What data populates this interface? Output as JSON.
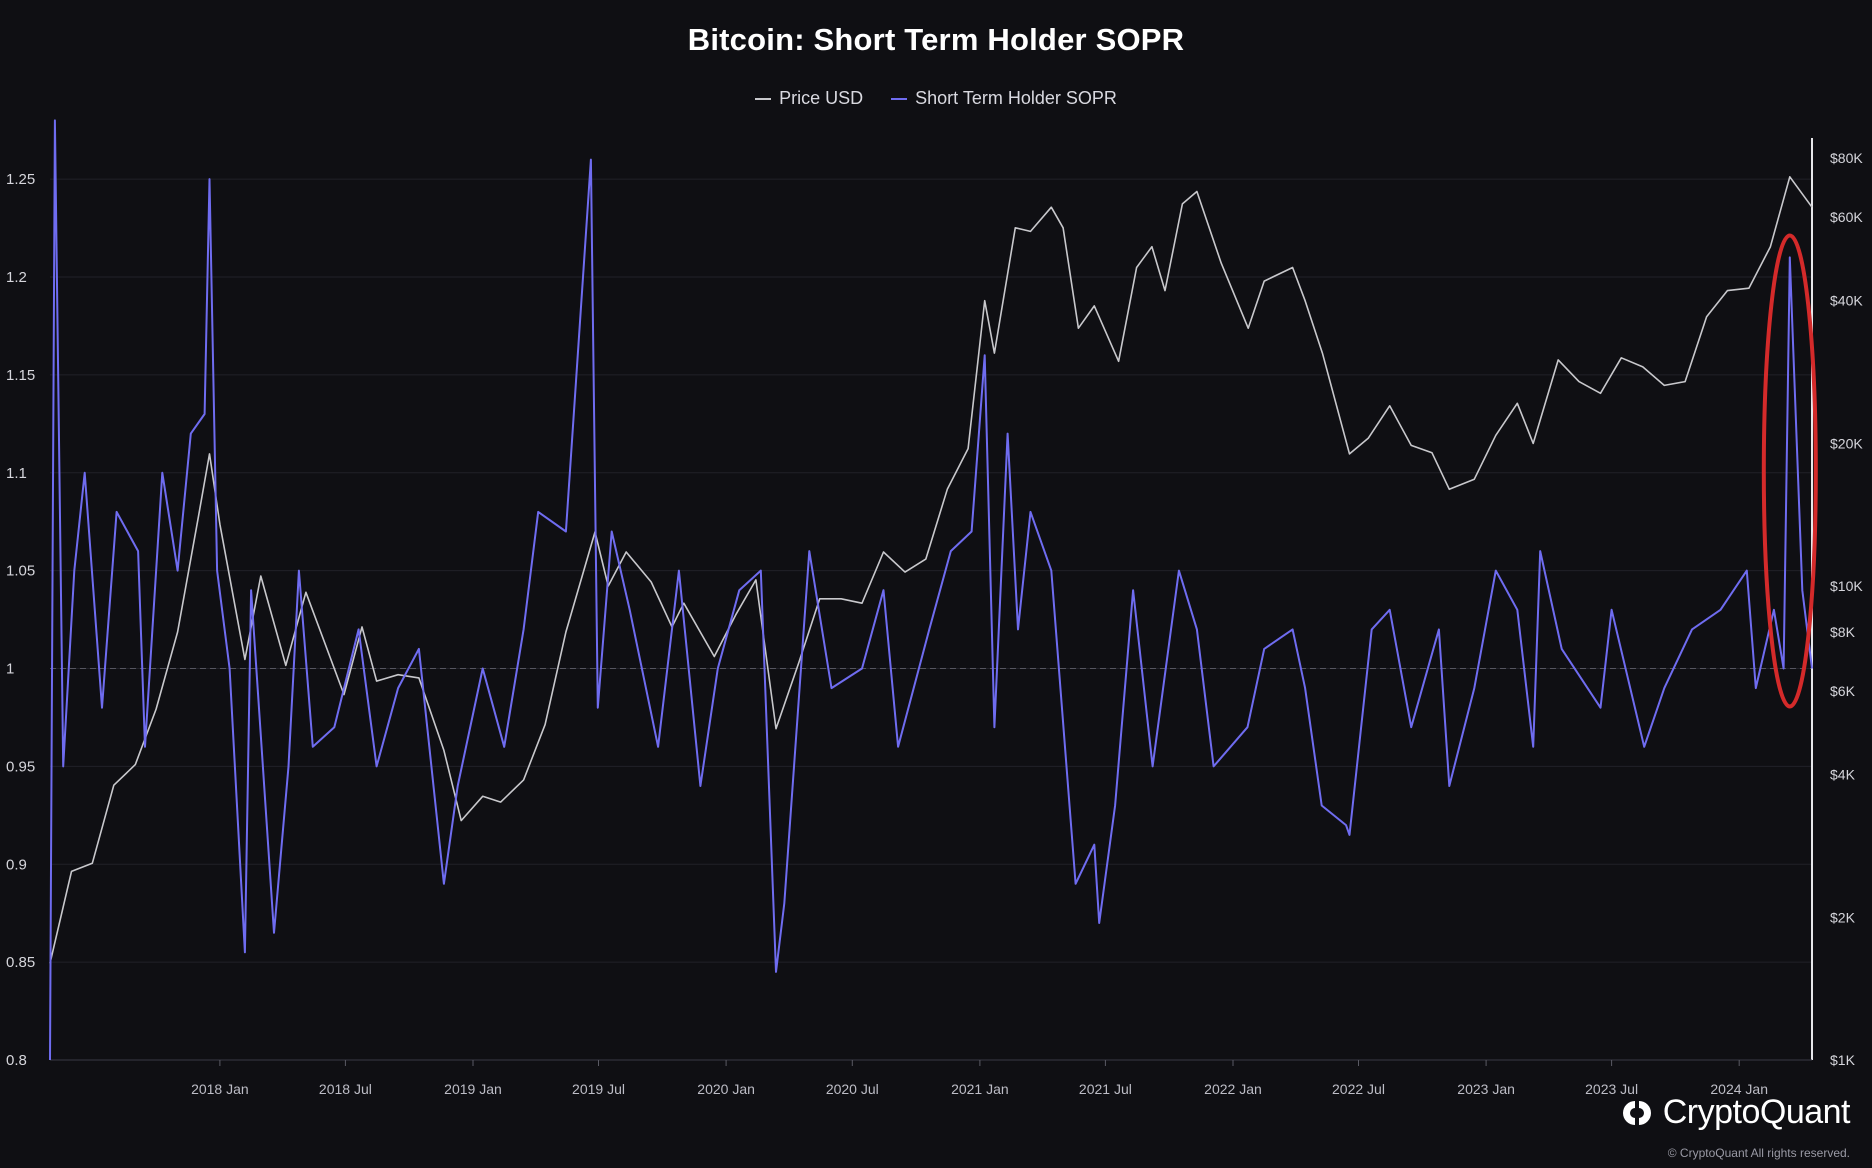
{
  "chart_data": {
    "type": "line",
    "title": "Bitcoin: Short Term Holder SOPR",
    "legend": [
      {
        "name": "Price USD",
        "color": "#c8c8cc"
      },
      {
        "name": "Short Term Holder SOPR",
        "color": "#6f6cf0"
      }
    ],
    "legend_position": "top-center",
    "x_ticks": [
      "2018 Jan",
      "2018 Jul",
      "2019 Jan",
      "2019 Jul",
      "2020 Jan",
      "2020 Jul",
      "2021 Jan",
      "2021 Jul",
      "2022 Jan",
      "2022 Jul",
      "2023 Jan",
      "2023 Jul",
      "2024 Jan"
    ],
    "x_range": [
      "2017-05-01",
      "2024-04-15"
    ],
    "left_axis": {
      "ticks": [
        "0.8",
        "0.85",
        "0.9",
        "0.95",
        "1",
        "1.05",
        "1.1",
        "1.15",
        "1.2",
        "1.25"
      ],
      "ylim": [
        0.8,
        1.27
      ]
    },
    "right_axis": {
      "scale": "log",
      "ticks": [
        "$1K",
        "$2K",
        "$4K",
        "$6K",
        "$8K",
        "$10K",
        "$20K",
        "$40K",
        "$60K",
        "$80K"
      ],
      "ylim": [
        1000,
        80000
      ]
    },
    "reference_line": 1,
    "highlight": {
      "type": "ellipse",
      "color": "#d42a2a",
      "around": "2024-03 SOPR spike"
    },
    "series": [
      {
        "name": "Price USD",
        "color": "#c8c8cc",
        "points": [
          [
            "2017-05-01",
            1600
          ],
          [
            "2017-06-01",
            2500
          ],
          [
            "2017-07-01",
            2600
          ],
          [
            "2017-08-01",
            3800
          ],
          [
            "2017-09-01",
            4200
          ],
          [
            "2017-10-01",
            5500
          ],
          [
            "2017-11-01",
            8000
          ],
          [
            "2017-12-01",
            14000
          ],
          [
            "2017-12-17",
            19000
          ],
          [
            "2018-01-01",
            13500
          ],
          [
            "2018-02-06",
            7000
          ],
          [
            "2018-03-01",
            10500
          ],
          [
            "2018-04-06",
            6800
          ],
          [
            "2018-05-05",
            9700
          ],
          [
            "2018-06-29",
            5900
          ],
          [
            "2018-07-25",
            8200
          ],
          [
            "2018-08-15",
            6300
          ],
          [
            "2018-09-15",
            6500
          ],
          [
            "2018-10-15",
            6400
          ],
          [
            "2018-11-20",
            4500
          ],
          [
            "2018-12-15",
            3200
          ],
          [
            "2019-01-15",
            3600
          ],
          [
            "2019-02-10",
            3500
          ],
          [
            "2019-03-15",
            3900
          ],
          [
            "2019-04-15",
            5100
          ],
          [
            "2019-05-15",
            8000
          ],
          [
            "2019-06-26",
            13000
          ],
          [
            "2019-07-15",
            10000
          ],
          [
            "2019-08-10",
            11800
          ],
          [
            "2019-09-15",
            10200
          ],
          [
            "2019-10-15",
            8200
          ],
          [
            "2019-11-01",
            9200
          ],
          [
            "2019-12-15",
            7100
          ],
          [
            "2020-01-15",
            8700
          ],
          [
            "2020-02-13",
            10300
          ],
          [
            "2020-03-13",
            5000
          ],
          [
            "2020-04-15",
            6900
          ],
          [
            "2020-05-15",
            9400
          ],
          [
            "2020-06-15",
            9400
          ],
          [
            "2020-07-15",
            9200
          ],
          [
            "2020-08-15",
            11800
          ],
          [
            "2020-09-15",
            10700
          ],
          [
            "2020-10-15",
            11400
          ],
          [
            "2020-11-15",
            16000
          ],
          [
            "2020-12-15",
            19500
          ],
          [
            "2021-01-08",
            40000
          ],
          [
            "2021-01-22",
            31000
          ],
          [
            "2021-02-21",
            57000
          ],
          [
            "2021-03-15",
            56000
          ],
          [
            "2021-04-14",
            63000
          ],
          [
            "2021-05-01",
            57000
          ],
          [
            "2021-05-23",
            35000
          ],
          [
            "2021-06-15",
            39000
          ],
          [
            "2021-07-20",
            29800
          ],
          [
            "2021-08-15",
            47000
          ],
          [
            "2021-09-06",
            52000
          ],
          [
            "2021-09-25",
            42000
          ],
          [
            "2021-10-20",
            64000
          ],
          [
            "2021-11-10",
            68000
          ],
          [
            "2021-12-15",
            48000
          ],
          [
            "2022-01-23",
            35000
          ],
          [
            "2022-02-15",
            44000
          ],
          [
            "2022-03-28",
            47000
          ],
          [
            "2022-04-15",
            40000
          ],
          [
            "2022-05-10",
            31000
          ],
          [
            "2022-06-18",
            19000
          ],
          [
            "2022-07-15",
            20500
          ],
          [
            "2022-08-15",
            24000
          ],
          [
            "2022-09-15",
            19800
          ],
          [
            "2022-10-15",
            19100
          ],
          [
            "2022-11-09",
            16000
          ],
          [
            "2022-12-15",
            16800
          ],
          [
            "2023-01-15",
            20800
          ],
          [
            "2023-02-15",
            24300
          ],
          [
            "2023-03-10",
            20000
          ],
          [
            "2023-04-15",
            30000
          ],
          [
            "2023-05-15",
            27000
          ],
          [
            "2023-06-15",
            25500
          ],
          [
            "2023-07-15",
            30300
          ],
          [
            "2023-08-15",
            29000
          ],
          [
            "2023-09-15",
            26500
          ],
          [
            "2023-10-15",
            27000
          ],
          [
            "2023-11-15",
            37000
          ],
          [
            "2023-12-15",
            42000
          ],
          [
            "2024-01-15",
            42500
          ],
          [
            "2024-02-15",
            52000
          ],
          [
            "2024-03-14",
            73000
          ],
          [
            "2024-04-15",
            63000
          ]
        ]
      },
      {
        "name": "Short Term Holder SOPR",
        "color": "#6f6cf0",
        "points": [
          [
            "2017-05-01",
            0.8
          ],
          [
            "2017-05-08",
            1.28
          ],
          [
            "2017-05-20",
            0.95
          ],
          [
            "2017-06-05",
            1.05
          ],
          [
            "2017-06-20",
            1.1
          ],
          [
            "2017-07-15",
            0.98
          ],
          [
            "2017-08-05",
            1.08
          ],
          [
            "2017-09-05",
            1.06
          ],
          [
            "2017-09-15",
            0.96
          ],
          [
            "2017-10-10",
            1.1
          ],
          [
            "2017-11-01",
            1.05
          ],
          [
            "2017-11-20",
            1.12
          ],
          [
            "2017-12-10",
            1.13
          ],
          [
            "2017-12-17",
            1.25
          ],
          [
            "2017-12-28",
            1.05
          ],
          [
            "2018-01-15",
            1.0
          ],
          [
            "2018-02-06",
            0.855
          ],
          [
            "2018-02-15",
            1.04
          ],
          [
            "2018-03-20",
            0.865
          ],
          [
            "2018-04-10",
            0.95
          ],
          [
            "2018-04-25",
            1.05
          ],
          [
            "2018-05-15",
            0.96
          ],
          [
            "2018-06-15",
            0.97
          ],
          [
            "2018-07-20",
            1.02
          ],
          [
            "2018-08-15",
            0.95
          ],
          [
            "2018-09-15",
            0.99
          ],
          [
            "2018-10-15",
            1.01
          ],
          [
            "2018-11-20",
            0.89
          ],
          [
            "2018-12-10",
            0.94
          ],
          [
            "2019-01-15",
            1.0
          ],
          [
            "2019-02-15",
            0.96
          ],
          [
            "2019-03-15",
            1.02
          ],
          [
            "2019-04-05",
            1.08
          ],
          [
            "2019-05-15",
            1.07
          ],
          [
            "2019-06-20",
            1.26
          ],
          [
            "2019-06-30",
            0.98
          ],
          [
            "2019-07-20",
            1.07
          ],
          [
            "2019-08-15",
            1.03
          ],
          [
            "2019-09-25",
            0.96
          ],
          [
            "2019-10-25",
            1.05
          ],
          [
            "2019-11-25",
            0.94
          ],
          [
            "2019-12-20",
            1.0
          ],
          [
            "2020-01-20",
            1.04
          ],
          [
            "2020-02-20",
            1.05
          ],
          [
            "2020-03-13",
            0.845
          ],
          [
            "2020-03-25",
            0.88
          ],
          [
            "2020-04-30",
            1.06
          ],
          [
            "2020-06-01",
            0.99
          ],
          [
            "2020-07-15",
            1.0
          ],
          [
            "2020-08-15",
            1.04
          ],
          [
            "2020-09-05",
            0.96
          ],
          [
            "2020-10-20",
            1.02
          ],
          [
            "2020-11-20",
            1.06
          ],
          [
            "2020-12-20",
            1.07
          ],
          [
            "2021-01-08",
            1.16
          ],
          [
            "2021-01-22",
            0.97
          ],
          [
            "2021-02-10",
            1.12
          ],
          [
            "2021-02-25",
            1.02
          ],
          [
            "2021-03-15",
            1.08
          ],
          [
            "2021-04-14",
            1.05
          ],
          [
            "2021-05-19",
            0.89
          ],
          [
            "2021-06-15",
            0.91
          ],
          [
            "2021-06-22",
            0.87
          ],
          [
            "2021-07-15",
            0.93
          ],
          [
            "2021-08-10",
            1.04
          ],
          [
            "2021-09-07",
            0.95
          ],
          [
            "2021-10-15",
            1.05
          ],
          [
            "2021-11-10",
            1.02
          ],
          [
            "2021-12-04",
            0.95
          ],
          [
            "2022-01-22",
            0.97
          ],
          [
            "2022-02-15",
            1.01
          ],
          [
            "2022-03-28",
            1.02
          ],
          [
            "2022-04-15",
            0.99
          ],
          [
            "2022-05-09",
            0.93
          ],
          [
            "2022-06-13",
            0.92
          ],
          [
            "2022-06-18",
            0.915
          ],
          [
            "2022-07-20",
            1.02
          ],
          [
            "2022-08-15",
            1.03
          ],
          [
            "2022-09-15",
            0.97
          ],
          [
            "2022-10-25",
            1.02
          ],
          [
            "2022-11-09",
            0.94
          ],
          [
            "2022-12-15",
            0.99
          ],
          [
            "2023-01-15",
            1.05
          ],
          [
            "2023-02-15",
            1.03
          ],
          [
            "2023-03-10",
            0.96
          ],
          [
            "2023-03-20",
            1.06
          ],
          [
            "2023-04-20",
            1.01
          ],
          [
            "2023-06-15",
            0.98
          ],
          [
            "2023-07-01",
            1.03
          ],
          [
            "2023-08-17",
            0.96
          ],
          [
            "2023-09-15",
            0.99
          ],
          [
            "2023-10-25",
            1.02
          ],
          [
            "2023-12-05",
            1.03
          ],
          [
            "2024-01-12",
            1.05
          ],
          [
            "2024-01-25",
            0.99
          ],
          [
            "2024-02-20",
            1.03
          ],
          [
            "2024-03-05",
            1.0
          ],
          [
            "2024-03-14",
            1.21
          ],
          [
            "2024-04-01",
            1.04
          ],
          [
            "2024-04-15",
            1.0
          ]
        ]
      }
    ]
  },
  "branding": {
    "name": "CryptoQuant",
    "copyright": "© CryptoQuant All rights reserved."
  }
}
